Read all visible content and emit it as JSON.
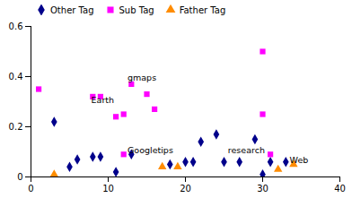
{
  "chart_data": {
    "type": "scatter",
    "series": [
      {
        "name": "Other Tag",
        "color": "#00008B",
        "marker": "diamond",
        "x": [
          3,
          5,
          6,
          8,
          9,
          11,
          13,
          18,
          20,
          21,
          22,
          24,
          25,
          27,
          29,
          30,
          31,
          33
        ],
        "values": [
          0.22,
          0.04,
          0.07,
          0.08,
          0.08,
          0.02,
          0.09,
          0.05,
          0.06,
          0.06,
          0.14,
          0.17,
          0.06,
          0.06,
          0.15,
          0.01,
          0.06,
          0.06
        ]
      },
      {
        "name": "Sub Tag",
        "color": "#FF00FF",
        "marker": "square",
        "x": [
          1,
          8,
          9,
          11,
          12,
          13,
          15,
          16,
          12,
          30,
          30,
          31
        ],
        "values": [
          0.35,
          0.32,
          0.32,
          0.24,
          0.25,
          0.37,
          0.33,
          0.27,
          0.09,
          0.5,
          0.25,
          0.09
        ]
      },
      {
        "name": "Father Tag",
        "color": "#FF8C00",
        "marker": "triangle",
        "x": [
          3,
          17,
          19,
          32,
          34
        ],
        "values": [
          0.01,
          0.04,
          0.04,
          0.03,
          0.05
        ]
      }
    ],
    "annotations": [
      {
        "text": "gmaps",
        "x": 12.5,
        "y": 0.385
      },
      {
        "text": "Earth",
        "x": 7.8,
        "y": 0.295
      },
      {
        "text": "Googletips",
        "x": 12.5,
        "y": 0.095
      },
      {
        "text": "research",
        "x": 25.5,
        "y": 0.095
      },
      {
        "text": "Web",
        "x": 33.5,
        "y": 0.055
      }
    ],
    "xlim": [
      0,
      40
    ],
    "ylim": [
      0,
      0.6
    ],
    "xticks": [
      0,
      10,
      20,
      30,
      40
    ],
    "yticks": [
      0,
      0.2,
      0.4,
      0.6
    ],
    "legend": "upper left",
    "grid": false
  }
}
